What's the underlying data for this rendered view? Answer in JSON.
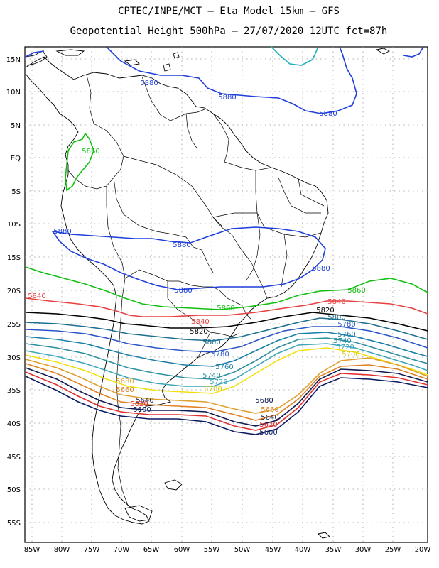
{
  "header": {
    "line1": "CPTEC/INPE/MCT –  Eta Model 15km – GFS",
    "line2": "Geopotential Height 500hPa – 27/07/2020 12UTC fct=87h"
  },
  "axes": {
    "lon_labels": [
      "85W",
      "80W",
      "75W",
      "70W",
      "65W",
      "60W",
      "55W",
      "50W",
      "45W",
      "40W",
      "35W",
      "30W",
      "25W",
      "20W"
    ],
    "lat_labels": [
      "15N",
      "10N",
      "5N",
      "EQ",
      "5S",
      "10S",
      "15S",
      "20S",
      "25S",
      "30S",
      "35S",
      "40S",
      "45S",
      "50S",
      "55S"
    ]
  },
  "colors": {
    "c5880": "#1f3fdb",
    "c5860": "#10c010",
    "c5840": "#e84040",
    "c5820": "#000000",
    "c5800": "#1e6f8f",
    "c5780": "#2a56c8",
    "c5760": "#1b7fa8",
    "c5740": "#2c8fa0",
    "c5720": "#3da6b8",
    "c5700": "#f0e010",
    "c5680": "#e0a030",
    "c5660": "#e08020",
    "c5640": "#101a50",
    "c5620": "#e03030",
    "c5600": "#0a1a60",
    "c5900": "#20b0c0"
  },
  "contour_labels": {
    "l5880a": "5880",
    "l5880b": "5880",
    "l5880c": "5880",
    "l5880d": "5880",
    "l5880e": "5880",
    "l5880f": "5880",
    "l5880g": "5880",
    "l5860a": "5860",
    "l5860b": "5860",
    "l5860c": "5860",
    "l5840a": "5840",
    "l5840b": "5840",
    "l5840c": "5840",
    "l5820a": "5820",
    "l5820b": "5820",
    "l5800a": "5800",
    "l5800b": "5800",
    "l5780a": "5780",
    "l5780b": "5780",
    "l5760a": "5760",
    "l5760b": "5760",
    "l5740a": "5740",
    "l5740b": "5740",
    "l5720a": "5720",
    "l5720b": "5720",
    "l5700a": "5700",
    "l5700b": "5700",
    "l5680a": "5680",
    "l5680b": "5680",
    "l5660a": "5660",
    "l5660b": "5660",
    "l5640a": "5640",
    "l5640b": "5640",
    "l5620a": "5620",
    "l5620b": "5620",
    "l5600a": "5600",
    "l5600b": "5600"
  }
}
